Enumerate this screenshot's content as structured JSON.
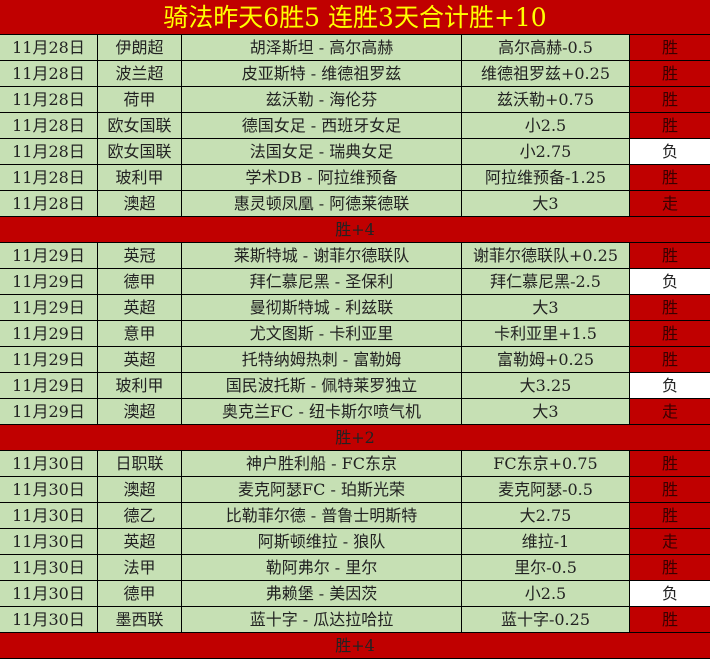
{
  "title": "骑法昨天6胜5  连胜3天合计胜+10",
  "groups": [
    {
      "rows": [
        [
          "11月28日",
          "伊朗超",
          "胡泽斯坦 - 高尔高赫",
          "高尔高赫-0.5",
          "胜"
        ],
        [
          "11月28日",
          "波兰超",
          "皮亚斯特 - 维德祖罗兹",
          "维德祖罗兹+0.25",
          "胜"
        ],
        [
          "11月28日",
          "荷甲",
          "兹沃勒 - 海伦芬",
          "兹沃勒+0.75",
          "胜"
        ],
        [
          "11月28日",
          "欧女国联",
          "德国女足 - 西班牙女足",
          "小2.5",
          "胜"
        ],
        [
          "11月28日",
          "欧女国联",
          "法国女足 - 瑞典女足",
          "小2.75",
          "负"
        ],
        [
          "11月28日",
          "玻利甲",
          "学术DB - 阿拉维预备",
          "阿拉维预备-1.25",
          "胜"
        ],
        [
          "11月28日",
          "澳超",
          "惠灵顿凤凰 - 阿德莱德联",
          "大3",
          "走"
        ]
      ],
      "summary": "胜+4"
    },
    {
      "rows": [
        [
          "11月29日",
          "英冠",
          "莱斯特城 - 谢菲尔德联队",
          "谢菲尔德联队+0.25",
          "胜"
        ],
        [
          "11月29日",
          "德甲",
          "拜仁慕尼黑 - 圣保利",
          "拜仁慕尼黑-2.5",
          "负"
        ],
        [
          "11月29日",
          "英超",
          "曼彻斯特城 - 利兹联",
          "大3",
          "胜"
        ],
        [
          "11月29日",
          "意甲",
          "尤文图斯 - 卡利亚里",
          "卡利亚里+1.5",
          "胜"
        ],
        [
          "11月29日",
          "英超",
          "托特纳姆热刺 - 富勒姆",
          "富勒姆+0.25",
          "胜"
        ],
        [
          "11月29日",
          "玻利甲",
          "国民波托斯 - 佩特莱罗独立",
          "大3.25",
          "负"
        ],
        [
          "11月29日",
          "澳超",
          "奥克兰FC - 纽卡斯尔喷气机",
          "大3",
          "走"
        ]
      ],
      "summary": "胜+2"
    },
    {
      "rows": [
        [
          "11月30日",
          "日职联",
          "神户胜利船 - FC东京",
          "FC东京+0.75",
          "胜"
        ],
        [
          "11月30日",
          "澳超",
          "麦克阿瑟FC - 珀斯光荣",
          "麦克阿瑟-0.5",
          "胜"
        ],
        [
          "11月30日",
          "德乙",
          "比勒菲尔德 - 普鲁士明斯特",
          "大2.75",
          "胜"
        ],
        [
          "11月30日",
          "英超",
          "阿斯顿维拉 - 狼队",
          "维拉-1",
          "走"
        ],
        [
          "11月30日",
          "法甲",
          "勒阿弗尔 - 里尔",
          "里尔-0.5",
          "胜"
        ],
        [
          "11月30日",
          "德甲",
          "弗赖堡 - 美因茨",
          "小2.5",
          "负"
        ],
        [
          "11月30日",
          "墨西联",
          "蓝十字 - 瓜达拉哈拉",
          "蓝十字-0.25",
          "胜"
        ]
      ],
      "summary": "胜+4"
    }
  ],
  "colors": {
    "header_bg": "#c00000",
    "title_text": "#ffff00",
    "row_bg": "#c6e0b4",
    "win_bg": "#c00000",
    "loss_bg": "#ffffff"
  }
}
